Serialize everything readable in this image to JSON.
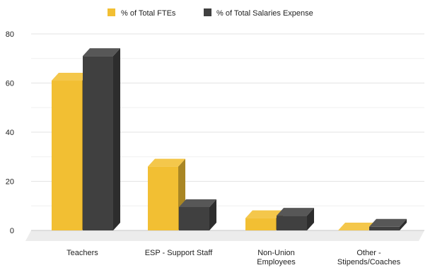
{
  "chart_data": {
    "type": "bar",
    "title": "",
    "xlabel": "",
    "ylabel": "",
    "ylim": [
      0,
      80
    ],
    "yticks": [
      0,
      20,
      40,
      60,
      80
    ],
    "grid": true,
    "legend_position": "top",
    "three_d": true,
    "categories": [
      [
        "Teachers"
      ],
      [
        "ESP - Support Staff"
      ],
      [
        "Non-Union",
        "Employees"
      ],
      [
        "Other -",
        "Stipends/Coaches"
      ]
    ],
    "series": [
      {
        "name": "% of Total FTEs",
        "color": "#F2BF33",
        "values": [
          61,
          26,
          5,
          0
        ]
      },
      {
        "name": "% of Total Salaries Expense",
        "color": "#404040",
        "values": [
          71,
          9.5,
          6,
          1.5
        ]
      }
    ]
  }
}
